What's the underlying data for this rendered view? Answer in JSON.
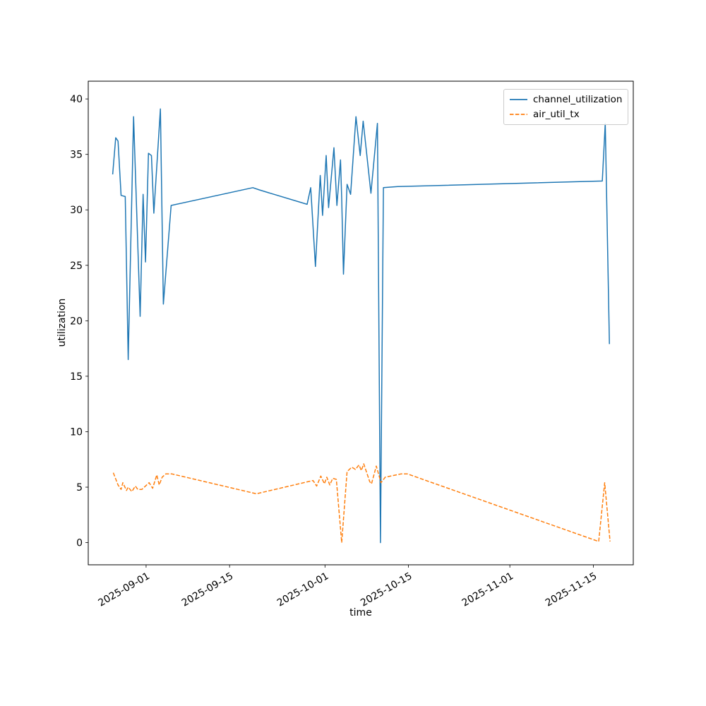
{
  "chart_data": {
    "type": "line",
    "title": "",
    "xlabel": "time",
    "ylabel": "utilization",
    "x_axis": {
      "unit": "days_since_2025-09-01",
      "min": -9.7,
      "max": 81.7,
      "ticks": [
        {
          "label": "2025-09-01",
          "day": 0
        },
        {
          "label": "2025-09-15",
          "day": 14
        },
        {
          "label": "2025-10-01",
          "day": 30
        },
        {
          "label": "2025-10-15",
          "day": 44
        },
        {
          "label": "2025-11-01",
          "day": 61
        },
        {
          "label": "2025-11-15",
          "day": 75
        }
      ],
      "tick_label_rotation_deg": 30
    },
    "y_axis": {
      "min": -2.0,
      "max": 41.6,
      "ticks": [
        0,
        5,
        10,
        15,
        20,
        25,
        30,
        35,
        40
      ]
    },
    "grid": false,
    "legend": {
      "position": "upper-right",
      "entries": [
        {
          "label": "channel_utilization",
          "color": "#1f77b4",
          "style": "solid"
        },
        {
          "label": "air_util_tx",
          "color": "#ff7f0e",
          "style": "dashed"
        }
      ]
    },
    "series": [
      {
        "name": "channel_utilization",
        "color": "#1f77b4",
        "line_style": "solid",
        "line_width": 1.5,
        "points": [
          [
            -5.6,
            33.2
          ],
          [
            -5.1,
            36.5
          ],
          [
            -4.7,
            36.2
          ],
          [
            -4.2,
            31.3
          ],
          [
            -3.5,
            31.2
          ],
          [
            -3.0,
            16.5
          ],
          [
            -2.1,
            38.4
          ],
          [
            -1.0,
            20.4
          ],
          [
            -0.5,
            31.4
          ],
          [
            -0.1,
            25.3
          ],
          [
            0.4,
            35.1
          ],
          [
            0.9,
            34.9
          ],
          [
            1.3,
            29.7
          ],
          [
            2.4,
            39.1
          ],
          [
            2.9,
            21.5
          ],
          [
            4.2,
            30.4
          ],
          [
            17.9,
            32.0
          ],
          [
            19.0,
            31.8
          ],
          [
            27.0,
            30.5
          ],
          [
            27.6,
            32.0
          ],
          [
            28.4,
            24.9
          ],
          [
            29.2,
            33.1
          ],
          [
            29.6,
            29.5
          ],
          [
            30.2,
            34.9
          ],
          [
            30.6,
            30.2
          ],
          [
            31.5,
            35.6
          ],
          [
            32.0,
            30.4
          ],
          [
            32.6,
            34.5
          ],
          [
            32.8,
            31.0
          ],
          [
            33.1,
            24.2
          ],
          [
            33.7,
            32.3
          ],
          [
            34.3,
            31.4
          ],
          [
            35.2,
            38.4
          ],
          [
            35.9,
            34.9
          ],
          [
            36.4,
            38.0
          ],
          [
            37.7,
            31.5
          ],
          [
            38.8,
            37.8
          ],
          [
            39.3,
            0.0
          ],
          [
            39.8,
            32.0
          ],
          [
            42.2,
            32.1
          ],
          [
            76.5,
            32.6
          ],
          [
            77.0,
            37.8
          ],
          [
            77.7,
            17.9
          ]
        ]
      },
      {
        "name": "air_util_tx",
        "color": "#ff7f0e",
        "line_style": "dashed",
        "line_width": 1.5,
        "points": [
          [
            -5.5,
            6.3
          ],
          [
            -4.7,
            5.2
          ],
          [
            -4.2,
            4.8
          ],
          [
            -3.9,
            5.4
          ],
          [
            -3.3,
            4.7
          ],
          [
            -3.0,
            5.0
          ],
          [
            -2.4,
            4.6
          ],
          [
            -1.8,
            5.1
          ],
          [
            -1.4,
            4.8
          ],
          [
            -0.7,
            4.8
          ],
          [
            0.5,
            5.4
          ],
          [
            1.1,
            4.9
          ],
          [
            1.8,
            6.1
          ],
          [
            2.2,
            5.2
          ],
          [
            2.7,
            5.9
          ],
          [
            3.3,
            6.2
          ],
          [
            4.3,
            6.2
          ],
          [
            18.5,
            4.4
          ],
          [
            28.0,
            5.6
          ],
          [
            28.6,
            5.1
          ],
          [
            29.3,
            6.0
          ],
          [
            29.9,
            5.3
          ],
          [
            30.3,
            5.9
          ],
          [
            30.8,
            5.2
          ],
          [
            31.3,
            5.8
          ],
          [
            31.9,
            5.7
          ],
          [
            32.8,
            0.0
          ],
          [
            33.7,
            6.4
          ],
          [
            34.5,
            6.8
          ],
          [
            35.1,
            6.6
          ],
          [
            35.7,
            7.0
          ],
          [
            36.1,
            6.5
          ],
          [
            36.5,
            7.1
          ],
          [
            37.5,
            5.5
          ],
          [
            37.8,
            5.3
          ],
          [
            38.6,
            6.9
          ],
          [
            39.4,
            5.4
          ],
          [
            40.1,
            5.9
          ],
          [
            42.8,
            6.2
          ],
          [
            43.8,
            6.2
          ],
          [
            75.9,
            0.1
          ],
          [
            76.9,
            5.4
          ],
          [
            77.8,
            0.1
          ]
        ]
      }
    ]
  }
}
